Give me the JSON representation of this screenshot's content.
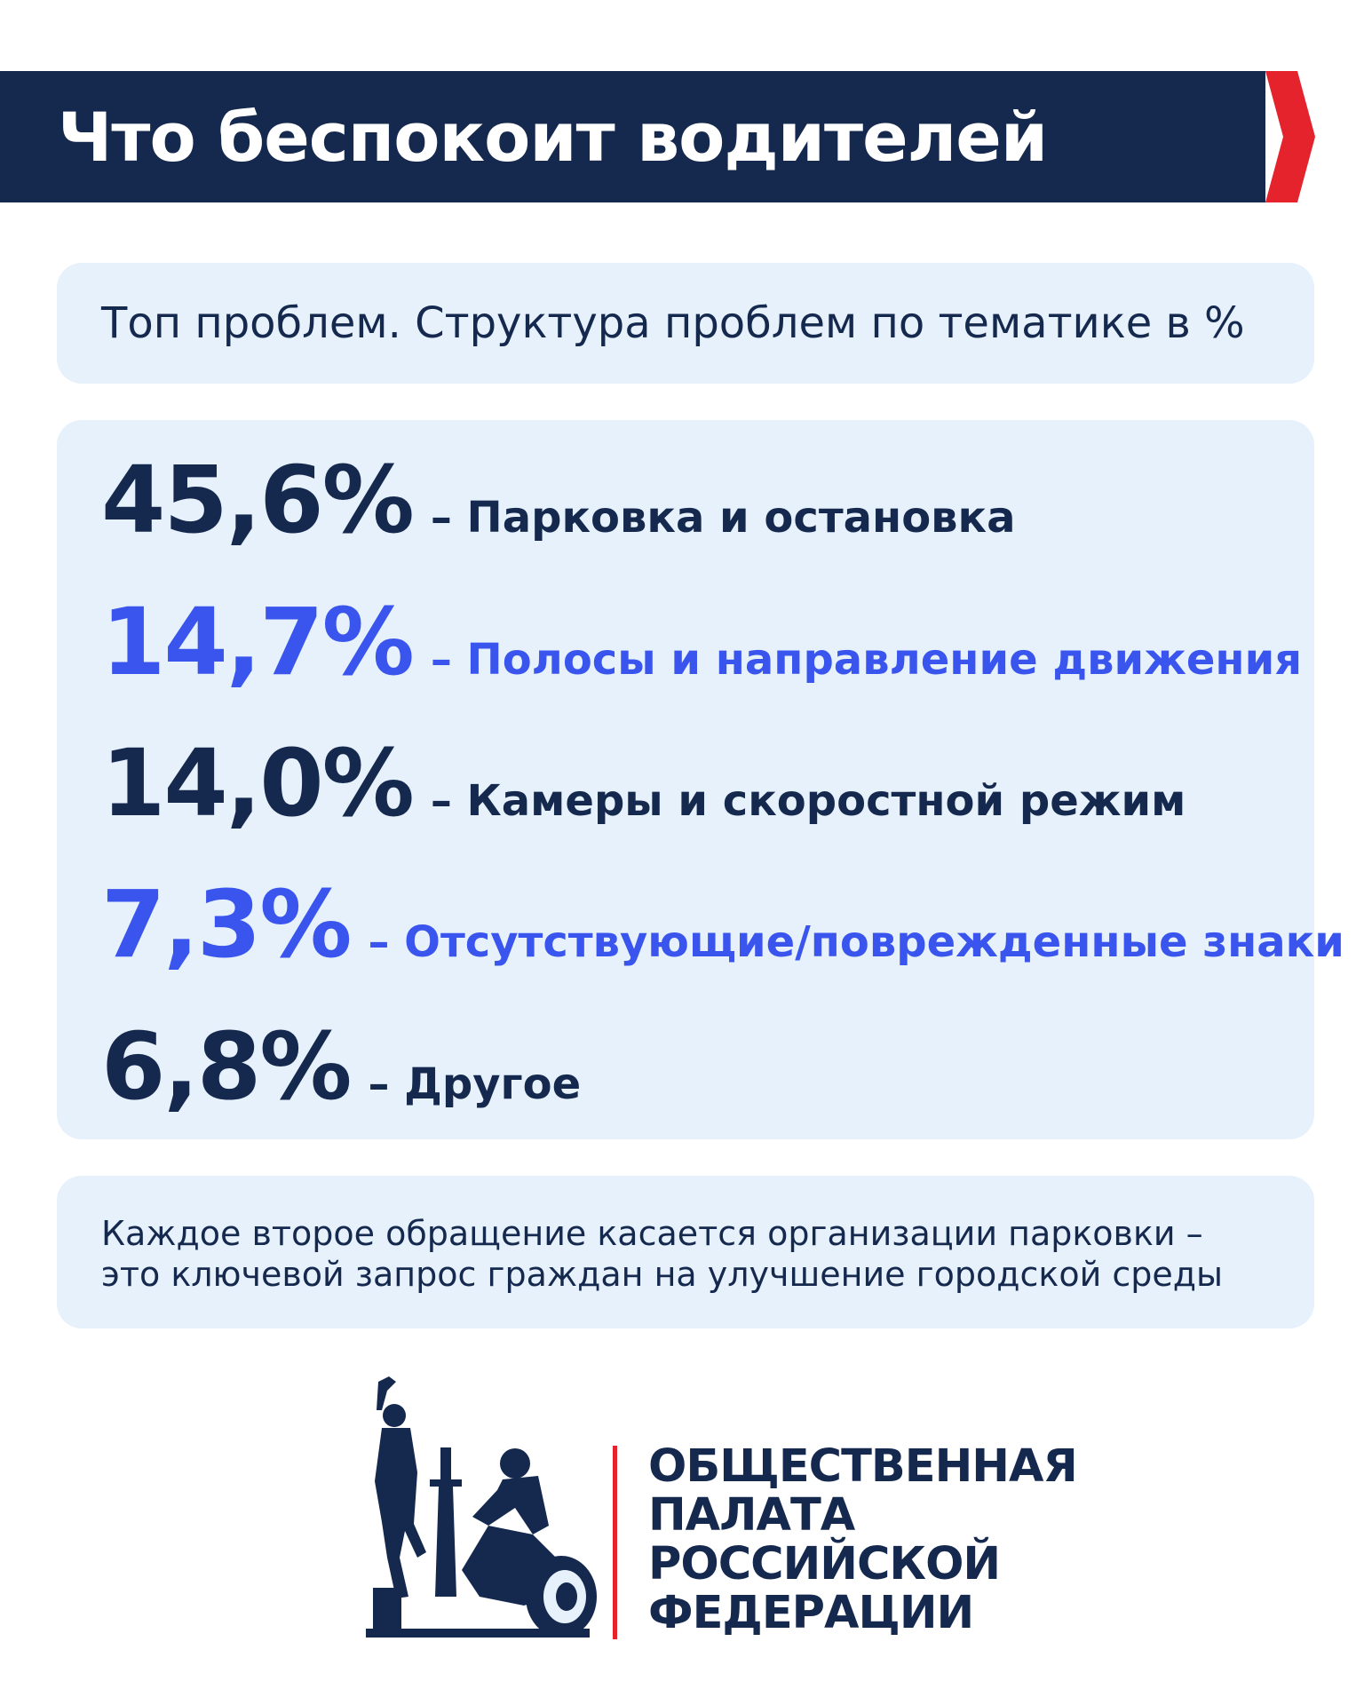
{
  "header": {
    "title": "Что беспокоит водителей"
  },
  "subtitle": "Топ проблем. Структура проблем по тематике в %",
  "stats": [
    {
      "value": "45,6%",
      "label": "– Парковка и остановка",
      "color": "#15294f"
    },
    {
      "value": "14,7%",
      "label": "– Полосы и направление движения",
      "color": "#3a55ee"
    },
    {
      "value": "14,0%",
      "label": "– Камеры и скоростной режим",
      "color": "#15294f"
    },
    {
      "value": "7,3%",
      "label": "– Отсутствующие/поврежденные знаки",
      "color": "#3a55ee"
    },
    {
      "value": "6,8%",
      "label": "– Другое",
      "color": "#15294f"
    }
  ],
  "note": {
    "line1": "Каждое второе обращение касается организации парковки –",
    "line2": "это ключевой запрос граждан на улучшение городской среды"
  },
  "logo": {
    "line1": "ОБЩЕСТВЕННАЯ",
    "line2": "ПАЛАТА",
    "line3": "РОССИЙСКОЙ",
    "line4": "ФЕДЕРАЦИИ",
    "emblem_icon": "monument-emblem-icon"
  },
  "colors": {
    "navy": "#15294f",
    "blue": "#3a55ee",
    "red": "#e4232d",
    "panel": "#e6f1fb"
  }
}
